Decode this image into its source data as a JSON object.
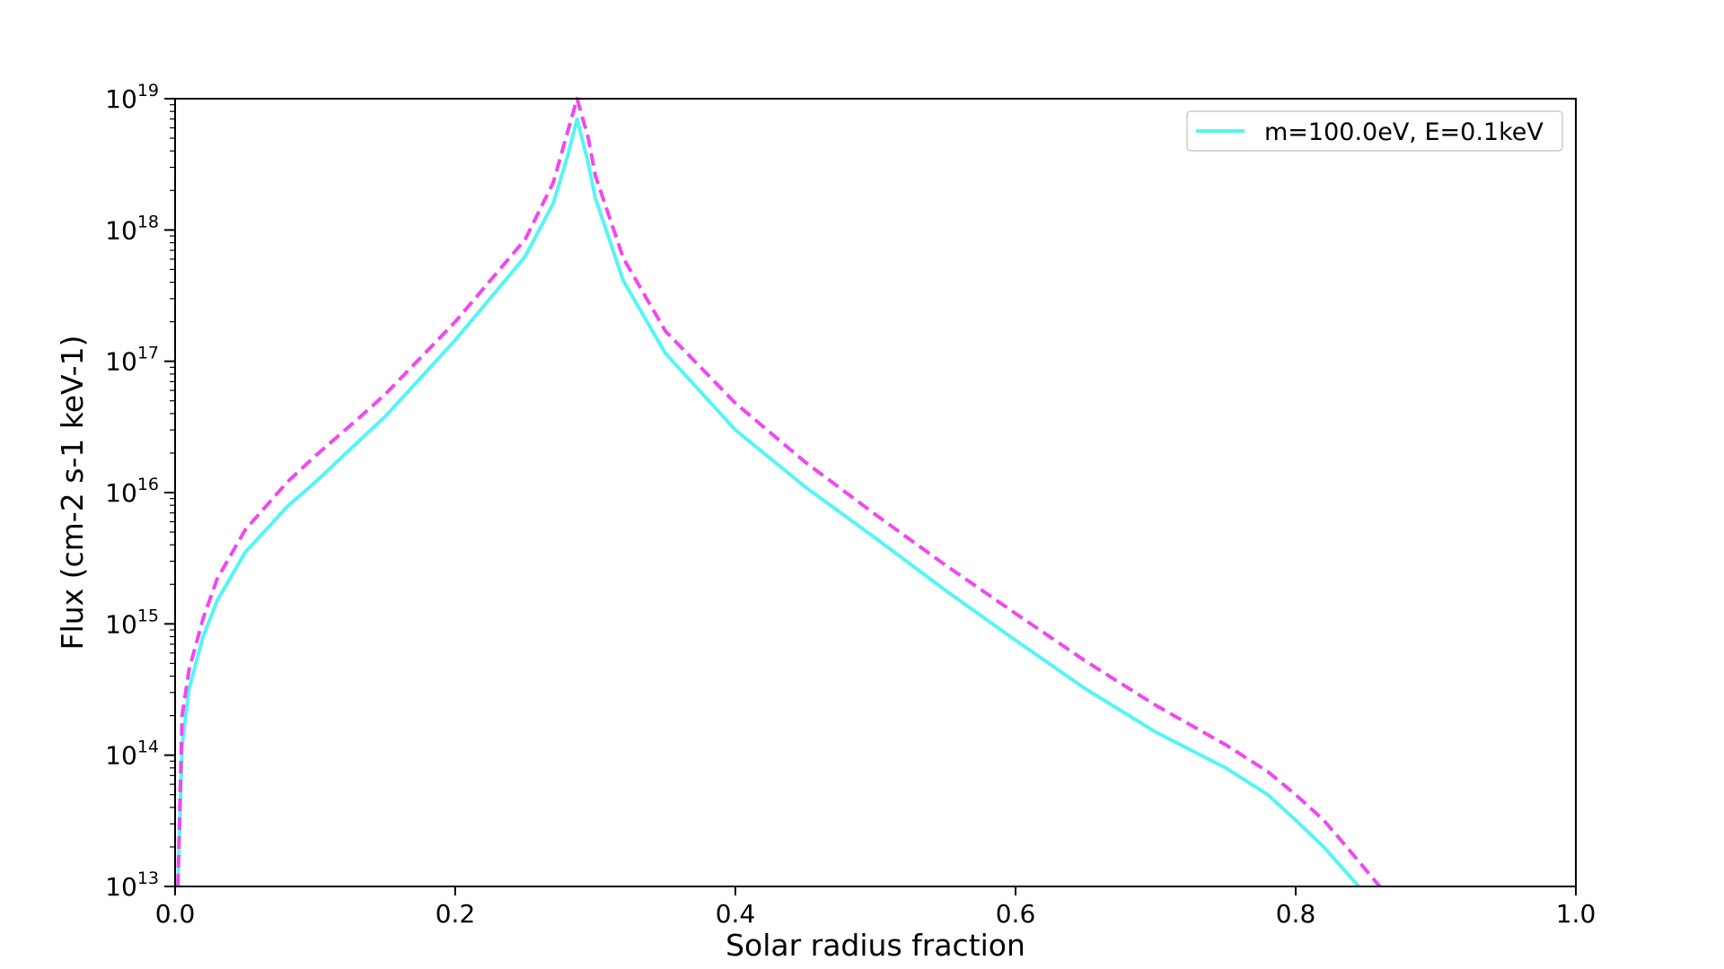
{
  "chart_data": {
    "type": "line",
    "title": "",
    "xlabel": "Solar radius fraction",
    "ylabel": "Flux (cm-2 s-1 keV-1)",
    "xlim": [
      0.0,
      1.0
    ],
    "ylim": [
      10000000000000.0,
      1e+19
    ],
    "yscale": "log",
    "grid": false,
    "legend_placement": "top-right",
    "x_ticks": [
      "0.0",
      "0.2",
      "0.4",
      "0.6",
      "0.8",
      "1.0"
    ],
    "y_ticks": [
      {
        "base": "10",
        "exp": "13"
      },
      {
        "base": "10",
        "exp": "14"
      },
      {
        "base": "10",
        "exp": "15"
      },
      {
        "base": "10",
        "exp": "16"
      },
      {
        "base": "10",
        "exp": "17"
      },
      {
        "base": "10",
        "exp": "18"
      },
      {
        "base": "10",
        "exp": "19"
      }
    ],
    "series": [
      {
        "name": "m=100.0eV, E=0.1keV",
        "color": "#55f5f5",
        "style": "solid",
        "x": [
          0.002,
          0.005,
          0.01,
          0.02,
          0.03,
          0.05,
          0.08,
          0.1,
          0.13,
          0.15,
          0.2,
          0.25,
          0.27,
          0.28,
          0.287,
          0.295,
          0.3,
          0.32,
          0.35,
          0.4,
          0.45,
          0.5,
          0.55,
          0.6,
          0.65,
          0.7,
          0.75,
          0.78,
          0.8,
          0.82,
          0.845
        ],
        "y": [
          10000000000000.0,
          120000000000000.0,
          320000000000000.0,
          800000000000000.0,
          1500000000000000.0,
          3500000000000000.0,
          7800000000000000.0,
          1.2e+16,
          2.4e+16,
          3.8e+16,
          1.45e+17,
          6.3e+17,
          1.6e+18,
          3.6e+18,
          7e+18,
          3.2e+18,
          1.75e+18,
          4.1e+17,
          1.15e+17,
          3e+16,
          1.1e+16,
          4500000000000000.0,
          1800000000000000.0,
          750000000000000.0,
          320000000000000.0,
          150000000000000.0,
          80000000000000.0,
          50000000000000.0,
          32000000000000.0,
          20000000000000.0,
          10000000000000.0
        ]
      },
      {
        "name": "",
        "color": "#f048f0",
        "style": "dashed",
        "x": [
          0.002,
          0.005,
          0.01,
          0.02,
          0.03,
          0.05,
          0.08,
          0.1,
          0.13,
          0.15,
          0.2,
          0.25,
          0.27,
          0.28,
          0.287,
          0.295,
          0.3,
          0.32,
          0.35,
          0.4,
          0.45,
          0.5,
          0.55,
          0.6,
          0.65,
          0.7,
          0.75,
          0.78,
          0.8,
          0.82,
          0.84,
          0.86
        ],
        "y": [
          10000000000000.0,
          200000000000000.0,
          450000000000000.0,
          1100000000000000.0,
          2200000000000000.0,
          5200000000000000.0,
          1.2e+16,
          1.9e+16,
          3.6e+16,
          5.6e+16,
          2e+17,
          8.5e+17,
          2.3e+18,
          5.5e+18,
          1e+19,
          5e+18,
          2.6e+18,
          6.1e+17,
          1.7e+17,
          4.8e+16,
          1.7e+16,
          6800000000000000.0,
          2800000000000000.0,
          1200000000000000.0,
          520000000000000.0,
          240000000000000.0,
          120000000000000.0,
          75000000000000.0,
          50000000000000.0,
          32000000000000.0,
          18000000000000.0,
          10000000000000.0
        ]
      }
    ]
  }
}
